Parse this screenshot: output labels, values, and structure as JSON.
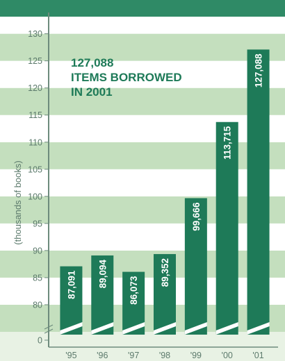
{
  "chart_data": {
    "type": "bar",
    "title": "",
    "headline": [
      "127,088",
      "ITEMS BORROWED",
      "IN 2001"
    ],
    "xlabel": "",
    "ylabel": "(thousands of books)",
    "categories": [
      "'95",
      "'96",
      "'97",
      "'98",
      "'99",
      "'00",
      "'01"
    ],
    "values": [
      87091,
      89094,
      86073,
      89352,
      99666,
      113715,
      127088
    ],
    "value_labels": [
      "87,091",
      "89,094",
      "86,073",
      "89,352",
      "99,666",
      "113,715",
      "127,088"
    ],
    "y_ticks": [
      0,
      80,
      85,
      90,
      95,
      100,
      105,
      110,
      115,
      120,
      125,
      130
    ],
    "y_axis_break": true,
    "ylim": [
      75,
      132
    ],
    "grid": "alternating horizontal bands",
    "colors": {
      "bar": "#1e7a58",
      "band_green": "#c4dfbe",
      "band_white": "#ffffff",
      "top_band": "#2f8a66",
      "axis": "#6d8b7c",
      "headline": "#1e7a58",
      "tick_text": "#5c7a6c",
      "value_text": "#ffffff"
    }
  }
}
